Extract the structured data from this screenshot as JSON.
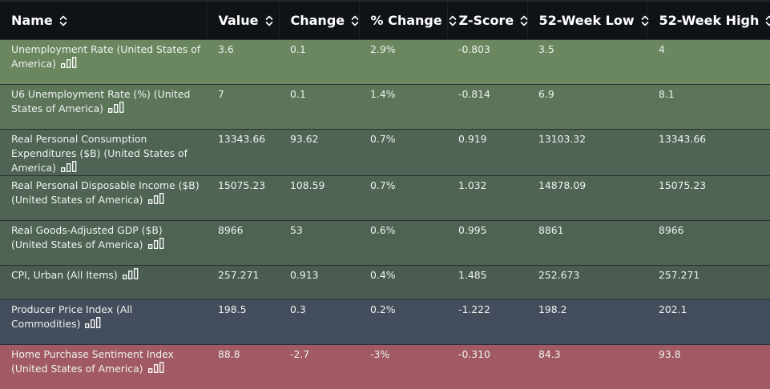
{
  "headers": {
    "name": "Name",
    "value": "Value",
    "change": "Change",
    "pct_change": "% Change",
    "zscore": "Z-Score",
    "low": "52-Week Low",
    "high": "52-Week High"
  },
  "icons": {
    "sort": "sort-icon",
    "chart": "bar-chart-icon"
  },
  "rows": [
    {
      "name": "Unemployment Rate (United States of America)",
      "value": "3.6",
      "change": "0.1",
      "pct_change": "2.9%",
      "zscore": "-0.803",
      "low": "3.5",
      "high": "4",
      "color": "#6b8760"
    },
    {
      "name": "U6 Unemployment Rate (%) (United States of America)",
      "value": "7",
      "change": "0.1",
      "pct_change": "1.4%",
      "zscore": "-0.814",
      "low": "6.9",
      "high": "8.1",
      "color": "#5c7559"
    },
    {
      "name": "Real Personal Consumption Expenditures ($B) (United States of America)",
      "value": "13343.66",
      "change": "93.62",
      "pct_change": "0.7%",
      "zscore": "0.919",
      "low": "13103.32",
      "high": "13343.66",
      "color": "#4f6455"
    },
    {
      "name": "Real Personal Disposable Income ($B) (United States of America)",
      "value": "15075.23",
      "change": "108.59",
      "pct_change": "0.7%",
      "zscore": "1.032",
      "low": "14878.09",
      "high": "15075.23",
      "color": "#4f6455"
    },
    {
      "name": "Real Goods-Adjusted GDP ($B) (United States of America)",
      "value": "8966",
      "change": "53",
      "pct_change": "0.6%",
      "zscore": "0.995",
      "low": "8861",
      "high": "8966",
      "color": "#4e6354"
    },
    {
      "name": "CPI, Urban (All Items)",
      "value": "257.271",
      "change": "0.913",
      "pct_change": "0.4%",
      "zscore": "1.485",
      "low": "252.673",
      "high": "257.271",
      "color": "#4a5c52"
    },
    {
      "name": "Producer Price Index (All Commodities)",
      "value": "198.5",
      "change": "0.3",
      "pct_change": "0.2%",
      "zscore": "-1.222",
      "low": "198.2",
      "high": "202.1",
      "color": "#444d5c"
    },
    {
      "name": "Home Purchase Sentiment Index (United States of America)",
      "value": "88.8",
      "change": "-2.7",
      "pct_change": "-3%",
      "zscore": "-0.310",
      "low": "84.3",
      "high": "93.8",
      "color": "#a15a63"
    }
  ]
}
